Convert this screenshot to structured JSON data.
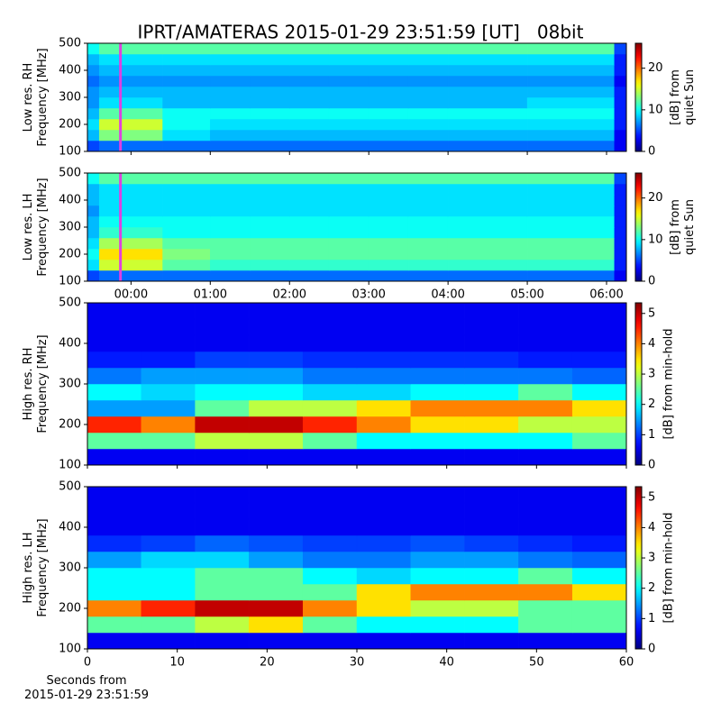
{
  "title": "IPRT/AMATERAS 2015-01-29 23:51:59 [UT]   08bit",
  "chart_data": [
    {
      "type": "heatmap",
      "ylabel": "Low res. RH\nFrequency [MHz]",
      "colormap": "jet",
      "xlim": [
        -0.55,
        6.25
      ],
      "sharex": true,
      "ylim": [
        100,
        500
      ],
      "yticks": [
        100,
        200,
        300,
        400,
        500
      ],
      "marker_x": -0.133,
      "marker_color": "#e040e0",
      "x_bins": [
        -0.55,
        -0.4,
        0.4,
        1,
        1.5,
        2,
        2.5,
        3,
        3.5,
        4,
        5,
        6.1,
        6.25
      ],
      "y_bins": [
        100,
        140,
        180,
        220,
        260,
        300,
        340,
        380,
        420,
        460,
        500
      ],
      "z": [
        [
          5,
          6,
          6,
          6,
          6,
          6,
          6,
          6,
          6,
          6,
          6,
          3
        ],
        [
          8,
          13,
          9,
          8,
          8,
          8,
          8,
          8,
          8,
          8,
          8,
          3
        ],
        [
          9,
          15,
          10,
          9,
          9,
          9,
          9,
          9,
          9,
          9,
          9,
          4
        ],
        [
          8,
          12,
          10,
          10,
          10,
          10,
          10,
          10,
          10,
          10,
          10,
          4
        ],
        [
          7,
          9,
          8,
          8,
          8,
          8,
          8,
          8,
          8,
          8,
          9,
          4
        ],
        [
          7,
          8,
          8,
          8,
          8,
          8,
          8,
          8,
          8,
          8,
          8,
          4
        ],
        [
          6,
          7,
          7,
          7,
          7,
          7,
          7,
          7,
          7,
          7,
          7,
          3
        ],
        [
          7,
          8,
          8,
          8,
          8,
          8,
          8,
          8,
          8,
          8,
          8,
          4
        ],
        [
          8,
          9,
          9,
          9,
          9,
          9,
          9,
          9,
          9,
          9,
          9,
          4
        ],
        [
          10,
          12,
          12,
          12,
          12,
          12,
          12,
          12,
          12,
          12,
          12,
          5
        ]
      ],
      "colorbar": {
        "label": "[dB] from\nquiet Sun",
        "clim": [
          0,
          26
        ],
        "ticks": [
          0,
          10,
          20
        ]
      }
    },
    {
      "type": "heatmap",
      "ylabel": "Low res. LH\nFrequency [MHz]",
      "colormap": "jet",
      "xlim": [
        -0.55,
        6.25
      ],
      "ylim": [
        100,
        500
      ],
      "yticks": [
        100,
        200,
        300,
        400,
        500
      ],
      "xticks": [
        {
          "value": 0,
          "label": "00:00"
        },
        {
          "value": 1,
          "label": "01:00"
        },
        {
          "value": 2,
          "label": "02:00"
        },
        {
          "value": 3,
          "label": "03:00"
        },
        {
          "value": 4,
          "label": "04:00"
        },
        {
          "value": 5,
          "label": "05:00"
        },
        {
          "value": 6,
          "label": "06:00"
        }
      ],
      "marker_x": -0.133,
      "marker_color": "#e040e0",
      "x_bins": [
        -0.55,
        -0.4,
        0.4,
        1,
        1.5,
        2,
        2.5,
        3,
        3.5,
        4,
        5,
        6.1,
        6.25
      ],
      "y_bins": [
        100,
        140,
        180,
        220,
        260,
        300,
        340,
        380,
        420,
        460,
        500
      ],
      "z": [
        [
          5,
          6,
          6,
          6,
          6,
          6,
          6,
          6,
          6,
          6,
          6,
          3
        ],
        [
          9,
          15,
          12,
          11,
          11,
          11,
          11,
          11,
          11,
          11,
          11,
          4
        ],
        [
          10,
          17,
          13,
          12,
          12,
          12,
          12,
          12,
          12,
          12,
          12,
          4
        ],
        [
          9,
          14,
          12,
          12,
          12,
          12,
          12,
          12,
          12,
          12,
          12,
          4
        ],
        [
          8,
          11,
          10,
          10,
          10,
          10,
          10,
          10,
          10,
          10,
          10,
          4
        ],
        [
          8,
          10,
          10,
          10,
          10,
          10,
          10,
          10,
          10,
          10,
          10,
          4
        ],
        [
          7,
          9,
          9,
          9,
          9,
          9,
          9,
          9,
          9,
          9,
          9,
          4
        ],
        [
          8,
          9,
          9,
          9,
          9,
          9,
          9,
          9,
          9,
          9,
          9,
          4
        ],
        [
          8,
          9,
          9,
          9,
          9,
          9,
          9,
          9,
          9,
          9,
          9,
          4
        ],
        [
          10,
          12,
          12,
          12,
          12,
          12,
          12,
          12,
          12,
          12,
          12,
          5
        ]
      ],
      "colorbar": {
        "label": "[dB] from\nquiet Sun",
        "clim": [
          0,
          26
        ],
        "ticks": [
          0,
          10,
          20
        ]
      }
    },
    {
      "type": "heatmap",
      "ylabel": "High res. RH\nFrequency [MHz]",
      "colormap": "jet",
      "xlim": [
        0,
        60
      ],
      "sharex": true,
      "ylim": [
        100,
        500
      ],
      "yticks": [
        100,
        200,
        300,
        400,
        500
      ],
      "x_bins": [
        0,
        6,
        12,
        18,
        24,
        30,
        36,
        42,
        48,
        54,
        60
      ],
      "y_bins": [
        100,
        140,
        180,
        220,
        260,
        300,
        340,
        380,
        420,
        460,
        500
      ],
      "z": [
        [
          0.6,
          0.6,
          0.6,
          0.6,
          0.6,
          0.6,
          0.6,
          0.6,
          0.6,
          0.6
        ],
        [
          2.5,
          2.5,
          3,
          3,
          2.5,
          2,
          2,
          2,
          2,
          2.5
        ],
        [
          4.5,
          4,
          5,
          5,
          4.5,
          4,
          3.5,
          3.5,
          3,
          3
        ],
        [
          1.5,
          1.5,
          2.5,
          3,
          3,
          3.5,
          4,
          4,
          4,
          3.5
        ],
        [
          2,
          1.8,
          2,
          2,
          1.8,
          1.8,
          2,
          2,
          2.5,
          2
        ],
        [
          1.3,
          1.5,
          1.5,
          1.5,
          1.3,
          1.3,
          1.3,
          1.3,
          1.3,
          1.2
        ],
        [
          0.8,
          0.8,
          1,
          1,
          0.9,
          0.9,
          0.9,
          0.9,
          0.8,
          0.8
        ],
        [
          0.6,
          0.6,
          0.6,
          0.6,
          0.6,
          0.6,
          0.6,
          0.6,
          0.6,
          0.6
        ],
        [
          0.6,
          0.6,
          0.6,
          0.6,
          0.6,
          0.6,
          0.6,
          0.6,
          0.6,
          0.6
        ],
        [
          0.6,
          0.6,
          0.6,
          0.6,
          0.6,
          0.6,
          0.6,
          0.6,
          0.6,
          0.6
        ]
      ],
      "colorbar": {
        "label": "[dB] from min-hold",
        "clim": [
          0,
          5.35
        ],
        "ticks": [
          0,
          1,
          2,
          3,
          4,
          5
        ]
      }
    },
    {
      "type": "heatmap",
      "ylabel": "High res. LH\nFrequency [MHz]",
      "colormap": "jet",
      "xlabel": "Seconds from\n2015-01-29 23:51:59",
      "xlim": [
        0,
        60
      ],
      "xticks": [
        0,
        10,
        20,
        30,
        40,
        50,
        60
      ],
      "ylim": [
        100,
        500
      ],
      "yticks": [
        100,
        200,
        300,
        400,
        500
      ],
      "x_bins": [
        0,
        6,
        12,
        18,
        24,
        30,
        36,
        42,
        48,
        54,
        60
      ],
      "y_bins": [
        100,
        140,
        180,
        220,
        260,
        300,
        340,
        380,
        420,
        460,
        500
      ],
      "z": [
        [
          0.6,
          0.6,
          0.6,
          0.6,
          0.6,
          0.6,
          0.6,
          0.6,
          0.6,
          0.6
        ],
        [
          2.5,
          2.5,
          3,
          3.5,
          2.5,
          2,
          2,
          2,
          2.5,
          2.5
        ],
        [
          4,
          4.5,
          5,
          5,
          4,
          3.5,
          3,
          3,
          2.5,
          2.5
        ],
        [
          2,
          2,
          2.5,
          2.5,
          2.5,
          3.5,
          4,
          4,
          4,
          3.5
        ],
        [
          2,
          2,
          2.5,
          2.5,
          2,
          1.8,
          2,
          2,
          2.5,
          2
        ],
        [
          1.5,
          1.8,
          1.8,
          1.5,
          1.3,
          1.3,
          1.5,
          1.5,
          1.3,
          1.2
        ],
        [
          0.9,
          1,
          1.2,
          1.1,
          1,
          1,
          1.1,
          1,
          0.9,
          0.8
        ],
        [
          0.6,
          0.6,
          0.6,
          0.6,
          0.6,
          0.6,
          0.6,
          0.6,
          0.6,
          0.6
        ],
        [
          0.6,
          0.6,
          0.6,
          0.6,
          0.6,
          0.6,
          0.6,
          0.6,
          0.6,
          0.6
        ],
        [
          0.6,
          0.6,
          0.6,
          0.6,
          0.6,
          0.6,
          0.6,
          0.6,
          0.6,
          0.6
        ]
      ],
      "colorbar": {
        "label": "[dB] from min-hold",
        "clim": [
          0,
          5.35
        ],
        "ticks": [
          0,
          1,
          2,
          3,
          4,
          5
        ]
      }
    }
  ]
}
